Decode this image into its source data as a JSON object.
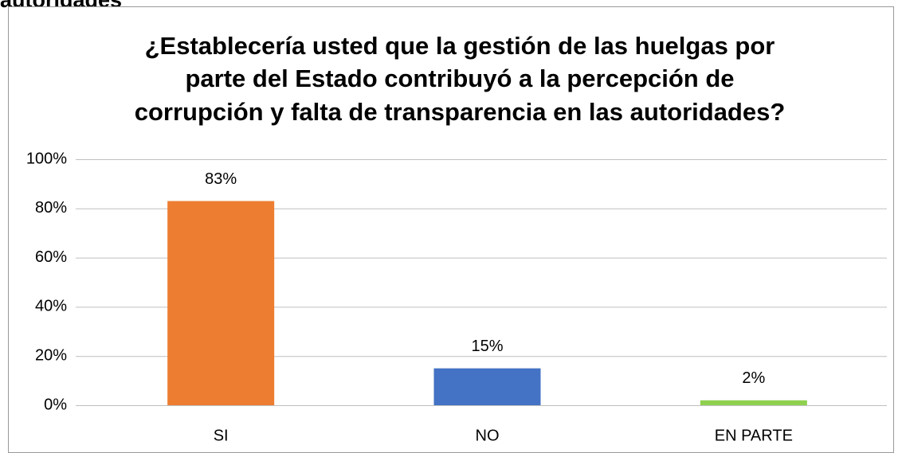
{
  "caption_fragment": "autoridades",
  "chart_data": {
    "type": "bar",
    "title": [
      "¿Establecería usted que la gestión de las huelgas por",
      "parte del Estado contribuyó a la percepción de",
      "corrupción y falta de transparencia en las autoridades?"
    ],
    "categories": [
      "SI",
      "NO",
      "EN PARTE"
    ],
    "values": [
      83,
      15,
      2
    ],
    "value_labels": [
      "83%",
      "15%",
      "2%"
    ],
    "colors": [
      "#ed7d31",
      "#4472c4",
      "#8fd14f"
    ],
    "ylim": [
      0,
      100
    ],
    "yticks": [
      {
        "value": 0,
        "label": "0%"
      },
      {
        "value": 20,
        "label": "20%"
      },
      {
        "value": 40,
        "label": "40%"
      },
      {
        "value": 60,
        "label": "60%"
      },
      {
        "value": 80,
        "label": "80%"
      },
      {
        "value": 100,
        "label": "100%"
      }
    ],
    "grid": true
  }
}
